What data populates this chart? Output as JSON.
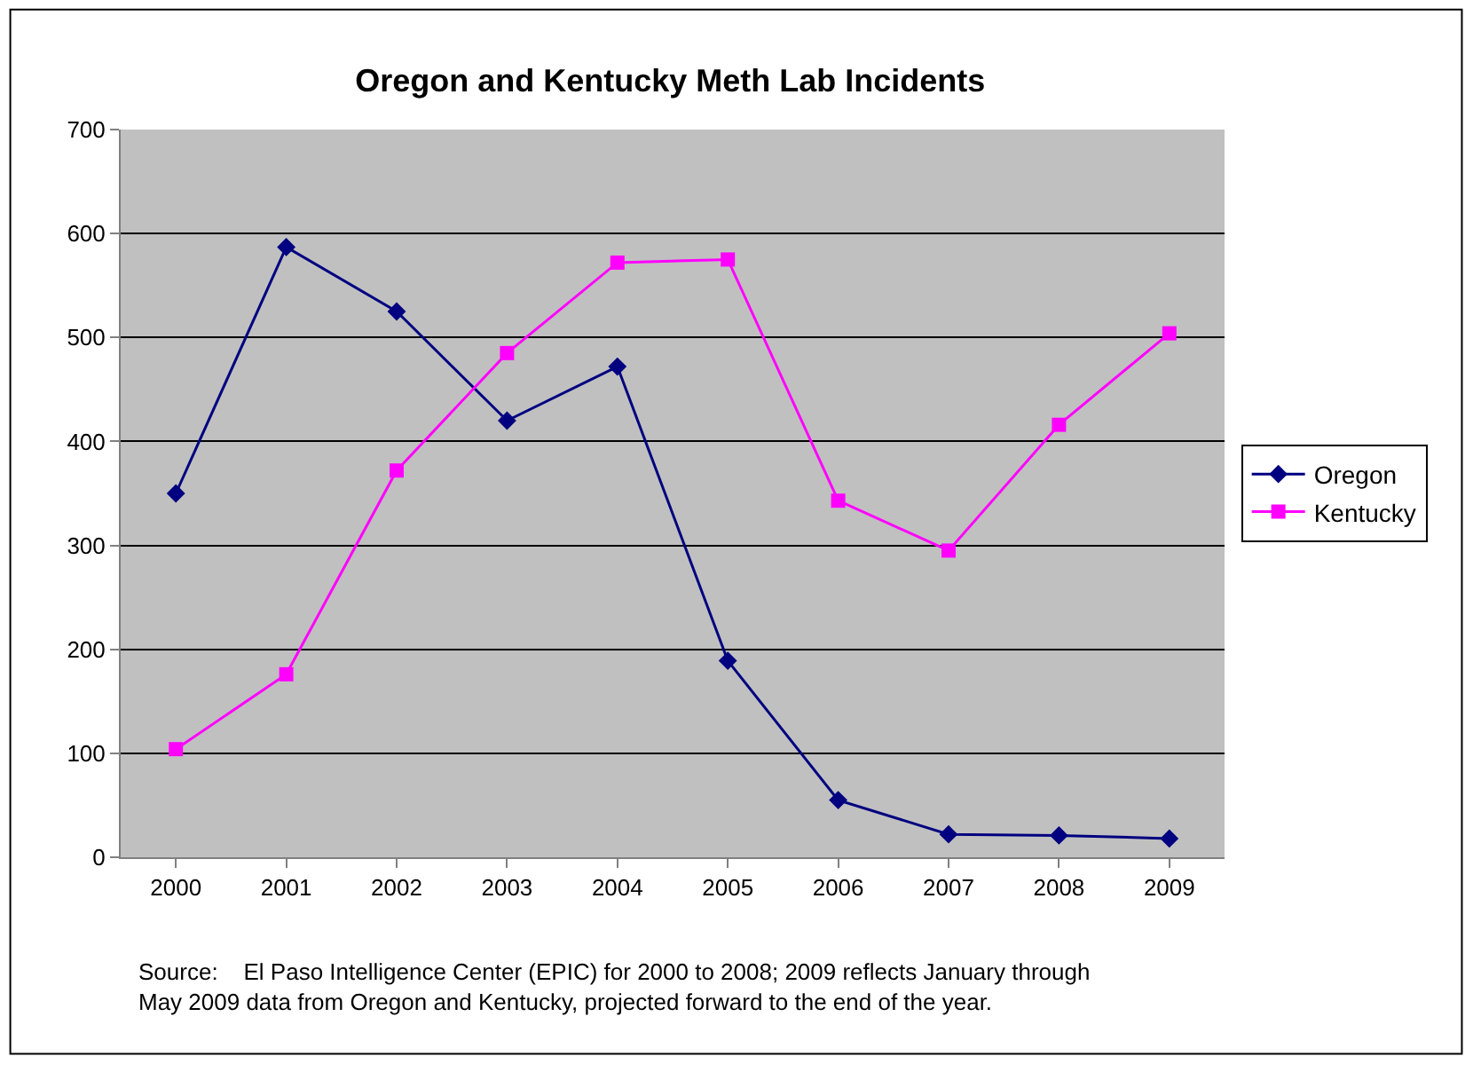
{
  "chart_data": {
    "type": "line",
    "title": "Oregon and Kentucky Meth Lab Incidents",
    "categories": [
      "2000",
      "2001",
      "2002",
      "2003",
      "2004",
      "2005",
      "2006",
      "2007",
      "2008",
      "2009"
    ],
    "series": [
      {
        "name": "Oregon",
        "color": "#000080",
        "marker": "diamond",
        "values": [
          350,
          587,
          525,
          420,
          472,
          189,
          55,
          22,
          21,
          18
        ]
      },
      {
        "name": "Kentucky",
        "color": "#ff00ff",
        "marker": "square",
        "values": [
          104,
          176,
          372,
          485,
          572,
          575,
          343,
          295,
          416,
          504
        ]
      }
    ],
    "ylim": [
      0,
      700
    ],
    "yticks": [
      0,
      100,
      200,
      300,
      400,
      500,
      600,
      700
    ],
    "grid": "y",
    "legend": "right",
    "line_style": "solid",
    "annotations": [
      "Source:    El Paso Intelligence Center (EPIC) for 2000 to 2008; 2009 reflects January through\nMay 2009 data from Oregon and Kentucky, projected forward to the end of the year."
    ]
  }
}
